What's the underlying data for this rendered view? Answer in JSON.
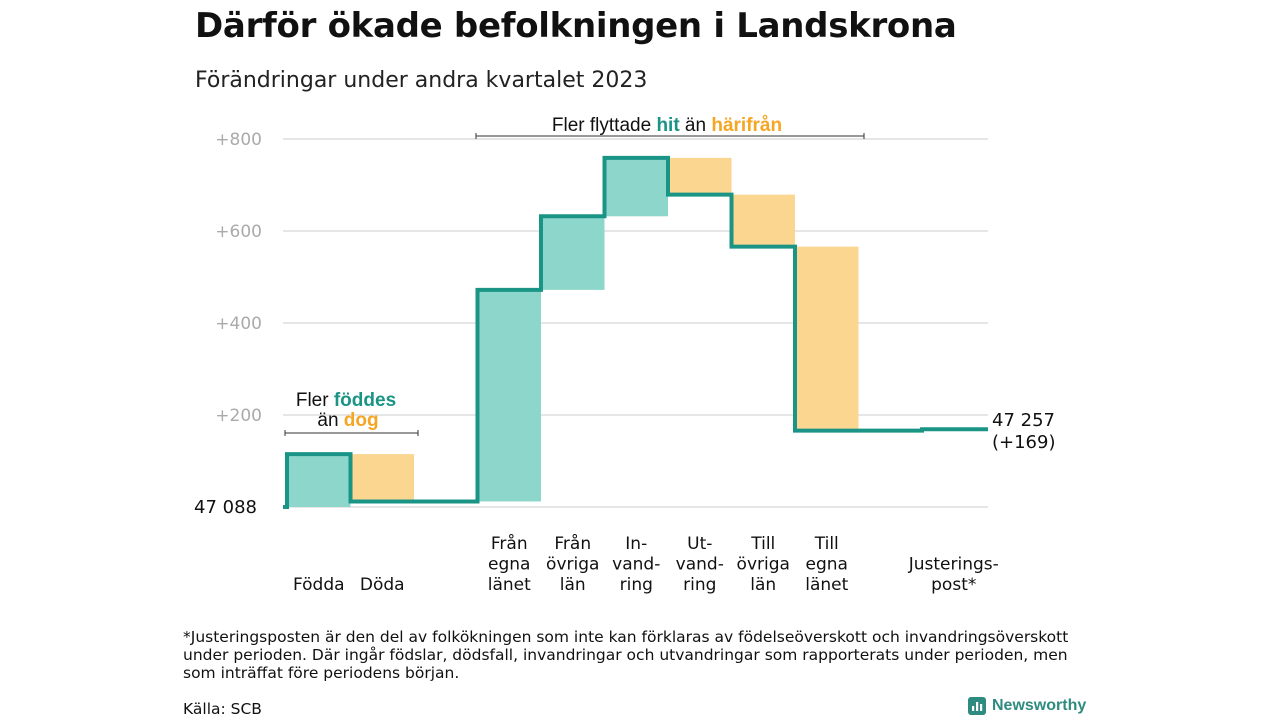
{
  "title": "Därför ökade befolkningen i Landskrona",
  "subtitle": "Förändringar under andra kvartalet 2023",
  "footnote": "*Justeringsposten är den del av folkökningen som inte kan förklaras av födelseöverskott och invandringsöverskott under perioden. Där ingår födslar, dödsfall, invandringar och utvandringar som rapporterats under perioden, men som inträffat före periodens början.",
  "source": "Källa: SCB",
  "brand": "Newsworthy",
  "colors": {
    "increase": "#8dd6cb",
    "decrease": "#fad690",
    "line": "#1a9485",
    "accent_hit": "#1a9485",
    "accent_harifran": "#f5a623",
    "grid": "#dddddd",
    "tick": "#aaaaaa"
  },
  "annotations": {
    "births_line1_plain": "Fler ",
    "births_line1_bold": "föddes",
    "births_line2_plain": "än ",
    "births_line2_bold": "dog",
    "moves_plain1": "Fler flyttade ",
    "moves_bold1": "hit",
    "moves_plain2": " än ",
    "moves_bold2": "härifrån"
  },
  "chart_data": {
    "type": "waterfall",
    "start_value_label": "47  088",
    "end_value_label_line1": "47 257",
    "end_value_label_line2": "(+169)",
    "ylim": [
      0,
      800
    ],
    "yticks": [
      "+200",
      "+400",
      "+600",
      "+800"
    ],
    "ytick_values": [
      200,
      400,
      600,
      800
    ],
    "grid": true,
    "categories": [
      {
        "label": [
          "Födda"
        ],
        "delta": 115,
        "kind": "increase",
        "slot": 0
      },
      {
        "label": [
          "Döda"
        ],
        "delta": -103,
        "kind": "decrease",
        "slot": 1
      },
      {
        "label": [
          "Från",
          "egna",
          "länet"
        ],
        "delta": 460,
        "kind": "increase",
        "slot": 3
      },
      {
        "label": [
          "Från",
          "övriga",
          "län"
        ],
        "delta": 160,
        "kind": "increase",
        "slot": 4
      },
      {
        "label": [
          "In-",
          "vand-",
          "ring"
        ],
        "delta": 127,
        "kind": "increase",
        "slot": 5
      },
      {
        "label": [
          "Ut-",
          "vand-",
          "ring"
        ],
        "delta": -80,
        "kind": "decrease",
        "slot": 6
      },
      {
        "label": [
          "Till",
          "övriga",
          "län"
        ],
        "delta": -113,
        "kind": "decrease",
        "slot": 7
      },
      {
        "label": [
          "Till",
          "egna",
          "länet"
        ],
        "delta": -400,
        "kind": "decrease",
        "slot": 8
      },
      {
        "label": [
          "Justerings-",
          "post*"
        ],
        "delta": 3,
        "kind": "adjust",
        "slot": 10
      }
    ],
    "end_value": 169
  }
}
